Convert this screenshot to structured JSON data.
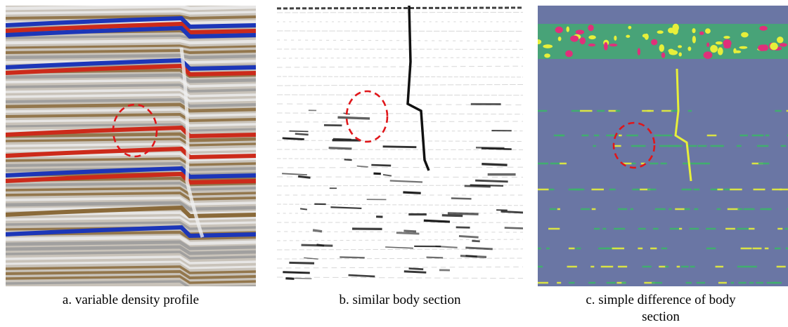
{
  "figure": {
    "panels": [
      {
        "id": "a",
        "caption": "a. variable density profile",
        "style": "seismic-color",
        "colors": {
          "bg": "#c9c3ba",
          "positive": "#cc2a1a",
          "negative": "#1c36b8",
          "brown": "#8a6a3a",
          "light": "#ececec"
        }
      },
      {
        "id": "b",
        "caption": "b. similar body section",
        "style": "grayscale",
        "colors": {
          "bg": "#ffffff",
          "mark": "#111111",
          "faint": "#bdbdbd"
        }
      },
      {
        "id": "c",
        "caption_line1": "c. simple difference of body",
        "caption_line2": "section",
        "style": "difference-heatmap",
        "colors": {
          "bg": "#6a76a4",
          "green": "#3db36a",
          "yellow": "#e7ef3a",
          "pink": "#e0307a"
        }
      }
    ],
    "annotation": {
      "shape": "dashed-circle",
      "color": "#e0161a"
    }
  }
}
